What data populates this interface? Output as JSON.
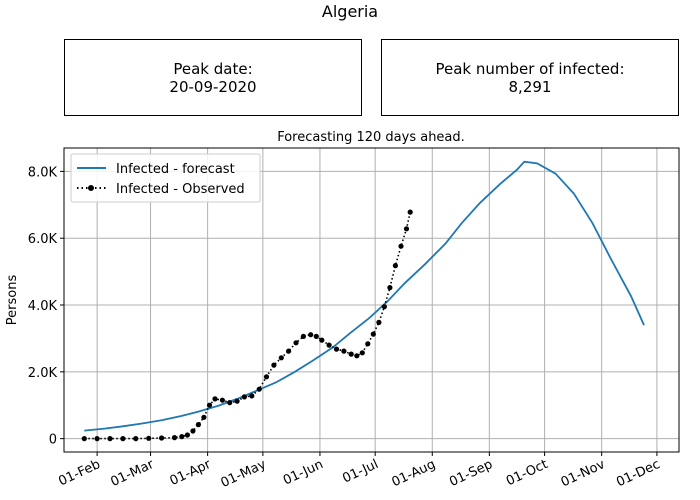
{
  "title": "Algeria",
  "peak_box": {
    "label": "Peak date:",
    "value": "20-09-2020"
  },
  "infected_box": {
    "label": "Peak number of infected:",
    "value": "8,291"
  },
  "chart_data": {
    "type": "line",
    "title": "Forecasting 120 days ahead.",
    "ylabel": "Persons",
    "xlabel": "",
    "xlim": [
      "2020-01-14",
      "2020-12-13"
    ],
    "ylim": [
      -400,
      8700
    ],
    "x_ticks": [
      {
        "date": "2020-02-01",
        "label": "01-Feb"
      },
      {
        "date": "2020-03-01",
        "label": "01-Mar"
      },
      {
        "date": "2020-04-01",
        "label": "01-Apr"
      },
      {
        "date": "2020-05-01",
        "label": "01-May"
      },
      {
        "date": "2020-06-01",
        "label": "01-Jun"
      },
      {
        "date": "2020-07-01",
        "label": "01-Jul"
      },
      {
        "date": "2020-08-01",
        "label": "01-Aug"
      },
      {
        "date": "2020-09-01",
        "label": "01-Sep"
      },
      {
        "date": "2020-10-01",
        "label": "01-Oct"
      },
      {
        "date": "2020-11-01",
        "label": "01-Nov"
      },
      {
        "date": "2020-12-01",
        "label": "01-Dec"
      }
    ],
    "y_ticks": [
      {
        "value": 0,
        "label": "0"
      },
      {
        "value": 2000,
        "label": "2.0K"
      },
      {
        "value": 4000,
        "label": "4.0K"
      },
      {
        "value": 6000,
        "label": "6.0K"
      },
      {
        "value": 8000,
        "label": "8.0K"
      }
    ],
    "grid": true,
    "legend_position": "top-left",
    "series": [
      {
        "name": "Infected - forecast",
        "style": "line",
        "color": "#1f77b4",
        "points": [
          [
            "2020-01-25",
            240
          ],
          [
            "2020-02-05",
            300
          ],
          [
            "2020-02-15",
            370
          ],
          [
            "2020-02-25",
            450
          ],
          [
            "2020-03-07",
            550
          ],
          [
            "2020-03-18",
            680
          ],
          [
            "2020-03-27",
            810
          ],
          [
            "2020-04-07",
            990
          ],
          [
            "2020-04-17",
            1190
          ],
          [
            "2020-04-27",
            1420
          ],
          [
            "2020-05-08",
            1680
          ],
          [
            "2020-05-18",
            1990
          ],
          [
            "2020-05-28",
            2330
          ],
          [
            "2020-06-08",
            2730
          ],
          [
            "2020-06-17",
            3140
          ],
          [
            "2020-06-28",
            3620
          ],
          [
            "2020-07-08",
            4130
          ],
          [
            "2020-07-17",
            4650
          ],
          [
            "2020-07-28",
            5220
          ],
          [
            "2020-08-08",
            5830
          ],
          [
            "2020-08-17",
            6450
          ],
          [
            "2020-08-27",
            7060
          ],
          [
            "2020-09-07",
            7630
          ],
          [
            "2020-09-16",
            8050
          ],
          [
            "2020-09-20",
            8291
          ],
          [
            "2020-09-27",
            8240
          ],
          [
            "2020-10-07",
            7930
          ],
          [
            "2020-10-17",
            7330
          ],
          [
            "2020-10-27",
            6450
          ],
          [
            "2020-11-06",
            5380
          ],
          [
            "2020-11-17",
            4260
          ],
          [
            "2020-11-24",
            3400
          ]
        ]
      },
      {
        "name": "Infected - Observed",
        "style": "dotted-markers",
        "color": "#000000",
        "points": [
          [
            "2020-01-25",
            0
          ],
          [
            "2020-02-01",
            0
          ],
          [
            "2020-02-08",
            0
          ],
          [
            "2020-02-15",
            0
          ],
          [
            "2020-02-22",
            0
          ],
          [
            "2020-02-29",
            10
          ],
          [
            "2020-03-07",
            20
          ],
          [
            "2020-03-14",
            30
          ],
          [
            "2020-03-18",
            60
          ],
          [
            "2020-03-21",
            110
          ],
          [
            "2020-03-24",
            230
          ],
          [
            "2020-03-27",
            420
          ],
          [
            "2020-03-30",
            640
          ],
          [
            "2020-04-02",
            1000
          ],
          [
            "2020-04-05",
            1190
          ],
          [
            "2020-04-09",
            1150
          ],
          [
            "2020-04-13",
            1080
          ],
          [
            "2020-04-17",
            1120
          ],
          [
            "2020-04-21",
            1250
          ],
          [
            "2020-04-25",
            1280
          ],
          [
            "2020-04-29",
            1480
          ],
          [
            "2020-05-03",
            1850
          ],
          [
            "2020-05-07",
            2200
          ],
          [
            "2020-05-11",
            2420
          ],
          [
            "2020-05-15",
            2620
          ],
          [
            "2020-05-19",
            2870
          ],
          [
            "2020-05-23",
            3060
          ],
          [
            "2020-05-27",
            3110
          ],
          [
            "2020-05-30",
            3060
          ],
          [
            "2020-06-02",
            2950
          ],
          [
            "2020-06-06",
            2800
          ],
          [
            "2020-06-10",
            2680
          ],
          [
            "2020-06-14",
            2620
          ],
          [
            "2020-06-18",
            2530
          ],
          [
            "2020-06-21",
            2480
          ],
          [
            "2020-06-24",
            2570
          ],
          [
            "2020-06-27",
            2840
          ],
          [
            "2020-06-30",
            3130
          ],
          [
            "2020-07-03",
            3480
          ],
          [
            "2020-07-06",
            3950
          ],
          [
            "2020-07-09",
            4520
          ],
          [
            "2020-07-12",
            5180
          ],
          [
            "2020-07-15",
            5760
          ],
          [
            "2020-07-18",
            6280
          ],
          [
            "2020-07-20",
            6780
          ]
        ]
      }
    ]
  }
}
